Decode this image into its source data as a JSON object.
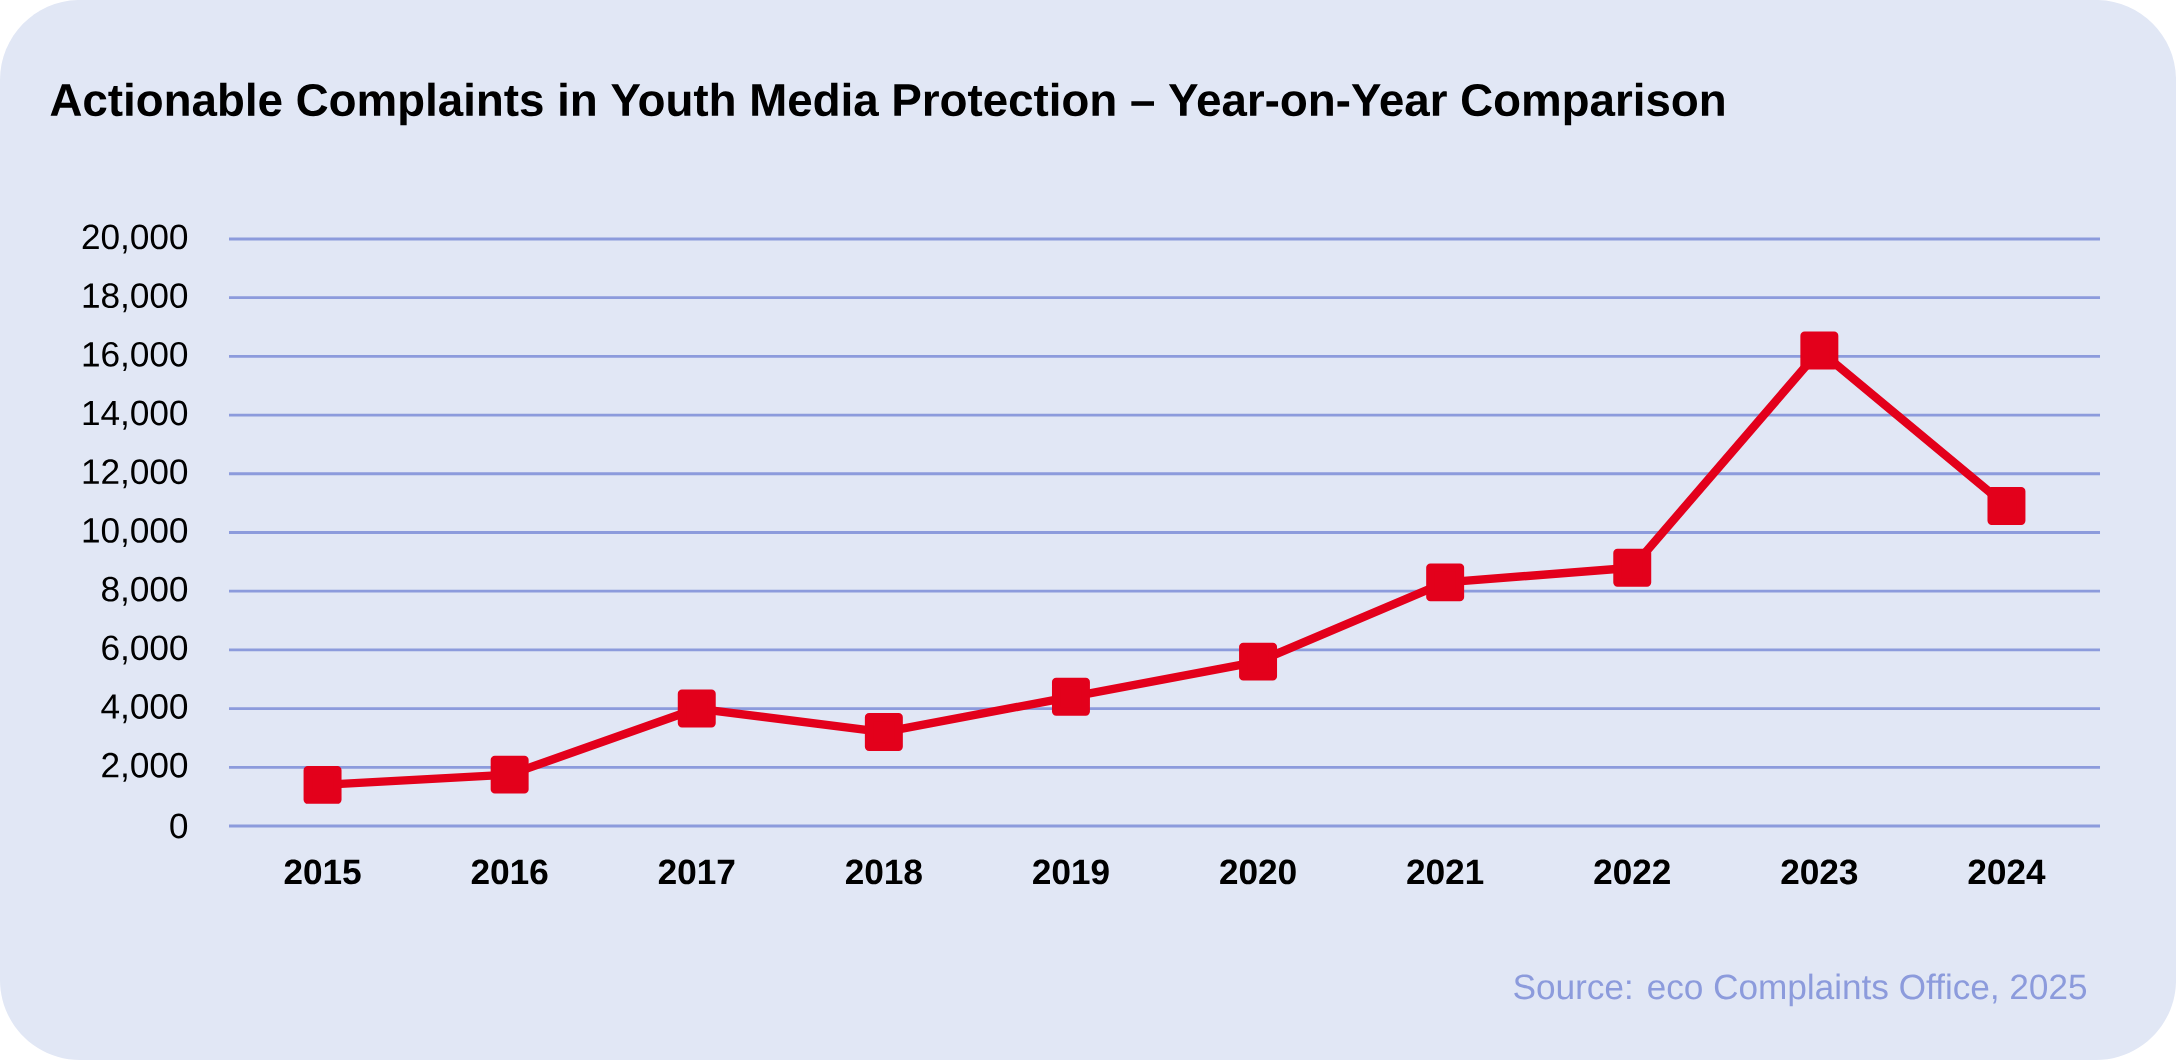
{
  "chart_data": {
    "type": "line",
    "title": "Actionable Complaints in Youth Media Protection – Year-on-Year Comparison",
    "categories": [
      "2015",
      "2016",
      "2017",
      "2018",
      "2019",
      "2020",
      "2021",
      "2022",
      "2023",
      "2024"
    ],
    "series": [
      {
        "color": "#e3001b",
        "values": [
          1400,
          1750,
          4000,
          3200,
          4400,
          5600,
          8300,
          8800,
          16200,
          10900
        ]
      }
    ],
    "ylim": [
      0,
      20000
    ],
    "yticks": [
      {
        "value": 0,
        "label": "0"
      },
      {
        "value": 2000,
        "label": "2,000"
      },
      {
        "value": 4000,
        "label": "4,000"
      },
      {
        "value": 6000,
        "label": "6,000"
      },
      {
        "value": 8000,
        "label": "8,000"
      },
      {
        "value": 10000,
        "label": "10,000"
      },
      {
        "value": 12000,
        "label": "12,000"
      },
      {
        "value": 14000,
        "label": "14,000"
      },
      {
        "value": 16000,
        "label": "16,000"
      },
      {
        "value": 18000,
        "label": "18,000"
      },
      {
        "value": 20000,
        "label": "20,000"
      }
    ],
    "grid": "y",
    "marker": "square",
    "line_style": "solid",
    "annotations": [
      "Source: eco Complaints Office, 2025"
    ]
  }
}
